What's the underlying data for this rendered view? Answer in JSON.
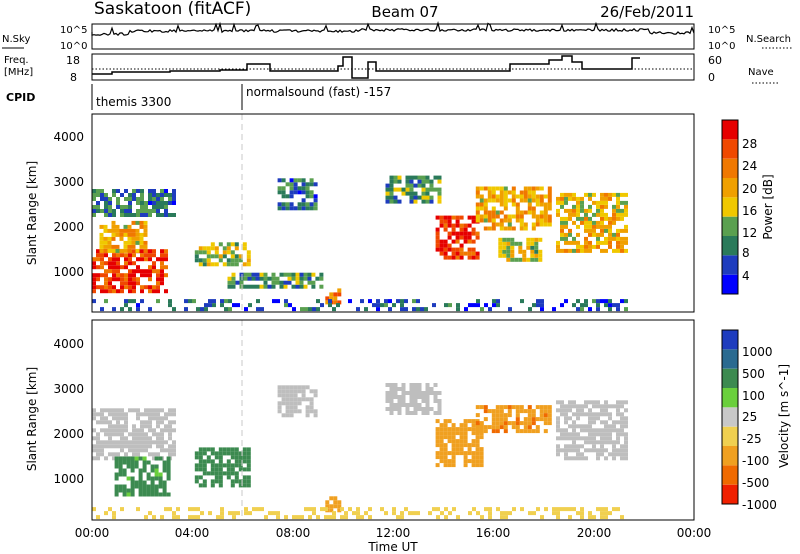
{
  "header": {
    "station": "Saskatoon (fitACF)",
    "beam": "Beam 07",
    "date": "26/Feb/2011"
  },
  "noise_panel": {
    "left_label": "N.Sky",
    "right_label": "N.Search",
    "left_ticks": [
      "10^5",
      "10^0"
    ],
    "right_ticks": [
      "10^5",
      "10^0"
    ]
  },
  "freq_panel": {
    "left_label_line1": "Freq.",
    "left_label_line2": "[MHz]",
    "left_ticks": [
      "18",
      "8"
    ],
    "right_ticks": [
      "60",
      "0"
    ],
    "right_label": "Nave"
  },
  "cpid": {
    "label": "CPID",
    "segments": [
      {
        "name": "themis 3300",
        "start_hour": 0
      },
      {
        "name": "normalsound (fast) -157",
        "start_hour": 6
      }
    ]
  },
  "x_axis": {
    "title": "Time UT",
    "ticks": [
      "00:00",
      "04:00",
      "08:00",
      "12:00",
      "16:00",
      "20:00",
      "00:00"
    ]
  },
  "colors": {
    "power": [
      "#0000ff",
      "#1e3cbe",
      "#2a7a5a",
      "#5aa050",
      "#f0c800",
      "#f0a000",
      "#f07800",
      "#f04800",
      "#e60000"
    ],
    "velocity": [
      "#1e3cbe",
      "#2a6a90",
      "#3c8a50",
      "#6acf3c",
      "#c8c8c8",
      "#f0d050",
      "#f0a020",
      "#f06a00",
      "#f02000"
    ],
    "ground_scatter": "#bebebe"
  },
  "chart_data": [
    {
      "type": "heatmap",
      "title": "Power",
      "ylabel": "Slant Range [km]",
      "xlabel": "Time UT",
      "xlim": [
        0,
        24
      ],
      "ylim": [
        180,
        4600
      ],
      "yticks": [
        "1000",
        "2000",
        "3000",
        "4000"
      ],
      "colorbar": {
        "label": "Power [dB]",
        "ticks": [
          "4",
          "8",
          "12",
          "16",
          "20",
          "24",
          "28"
        ],
        "range": [
          0,
          30
        ]
      },
      "regions": [
        {
          "t0": 0.0,
          "t1": 3.0,
          "r0": 600,
          "r1": 1500,
          "value": 26
        },
        {
          "t0": 0.3,
          "t1": 2.2,
          "r0": 1500,
          "r1": 2200,
          "value": 18
        },
        {
          "t0": 0.0,
          "t1": 3.2,
          "r0": 2300,
          "r1": 2900,
          "value": 8
        },
        {
          "t0": 4.1,
          "t1": 6.2,
          "r0": 1200,
          "r1": 1700,
          "value": 14
        },
        {
          "t0": 5.4,
          "t1": 9.2,
          "r0": 700,
          "r1": 1050,
          "value": 10
        },
        {
          "t0": 7.4,
          "t1": 8.9,
          "r0": 2450,
          "r1": 3100,
          "value": 8
        },
        {
          "t0": 9.3,
          "t1": 9.8,
          "r0": 350,
          "r1": 650,
          "value": 22
        },
        {
          "t0": 11.7,
          "t1": 13.8,
          "r0": 2600,
          "r1": 3200,
          "value": 10
        },
        {
          "t0": 13.7,
          "t1": 15.3,
          "r0": 1350,
          "r1": 2300,
          "value": 27
        },
        {
          "t0": 15.3,
          "t1": 18.2,
          "r0": 2000,
          "r1": 2900,
          "value": 18
        },
        {
          "t0": 16.2,
          "t1": 17.8,
          "r0": 1300,
          "r1": 1800,
          "value": 14
        },
        {
          "t0": 18.5,
          "t1": 21.3,
          "r0": 1500,
          "r1": 2800,
          "value": 16
        },
        {
          "t0": 0.0,
          "t1": 21.3,
          "r0": 200,
          "r1": 450,
          "value": 6
        }
      ]
    },
    {
      "type": "heatmap",
      "title": "Velocity",
      "ylabel": "Slant Range [km]",
      "xlabel": "Time UT",
      "xlim": [
        0,
        24
      ],
      "ylim": [
        180,
        4600
      ],
      "yticks": [
        "1000",
        "2000",
        "3000",
        "4000"
      ],
      "colorbar": {
        "label": "Velocity [m s^-1]",
        "ticks": [
          "1000",
          "500",
          "100",
          "25",
          "-25",
          "-100",
          "-500",
          "-1000"
        ]
      },
      "regions": [
        {
          "t0": 0.0,
          "t1": 3.2,
          "r0": 1500,
          "r1": 2600,
          "value": "ground"
        },
        {
          "t0": 0.9,
          "t1": 3.0,
          "r0": 700,
          "r1": 1500,
          "value": 150
        },
        {
          "t0": 4.1,
          "t1": 6.2,
          "r0": 900,
          "r1": 1700,
          "value": 300
        },
        {
          "t0": 7.4,
          "t1": 8.9,
          "r0": 2450,
          "r1": 3100,
          "value": "ground"
        },
        {
          "t0": 9.3,
          "t1": 9.8,
          "r0": 350,
          "r1": 650,
          "value": -200
        },
        {
          "t0": 11.7,
          "t1": 13.8,
          "r0": 2500,
          "r1": 3200,
          "value": "ground"
        },
        {
          "t0": 13.7,
          "t1": 15.6,
          "r0": 1350,
          "r1": 2400,
          "value": -300
        },
        {
          "t0": 15.3,
          "t1": 18.3,
          "r0": 2100,
          "r1": 2700,
          "value": -400
        },
        {
          "t0": 18.5,
          "t1": 21.3,
          "r0": 1500,
          "r1": 2800,
          "value": "ground"
        },
        {
          "t0": 0.0,
          "t1": 21.3,
          "r0": 200,
          "r1": 450,
          "value": -60
        }
      ]
    }
  ]
}
